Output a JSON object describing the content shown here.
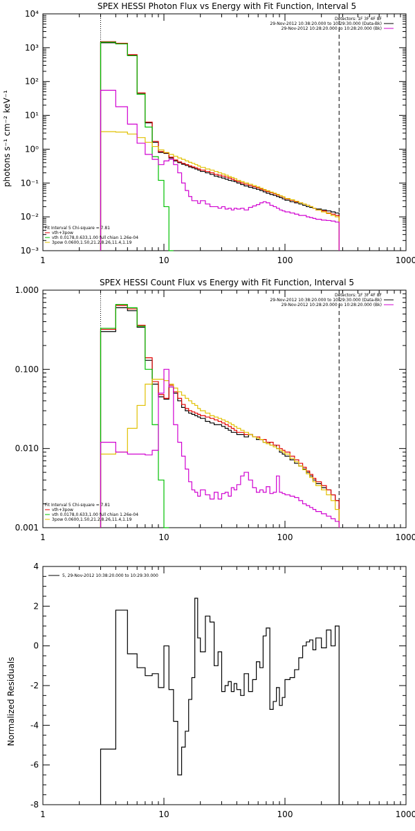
{
  "chart_data": [
    {
      "type": "line",
      "title": "SPEX HESSI Photon Flux vs Energy with Fit Function, Interval 5",
      "xlabel": "",
      "ylabel": "photons s⁻¹ cm⁻² keV⁻¹",
      "xscale": "log",
      "yscale": "log",
      "xlim": [
        1,
        1000
      ],
      "ylim": [
        0.001,
        10000
      ],
      "xticks": [
        "1",
        "10",
        "100",
        "1000"
      ],
      "yticks": [
        "10⁻³",
        "10⁻²",
        "10⁻¹",
        "10⁰",
        "10¹",
        "10²",
        "10³",
        "10⁴"
      ],
      "vlines": [
        3,
        280
      ],
      "legend_top_right": [
        {
          "text": "Detectors: 1F 3F 4F 8F",
          "color": "#000000"
        },
        {
          "text": "29-Nov-2012 10:38:20.000 to 10:29:30.000 (Data-Bk)",
          "color": "#000000"
        },
        {
          "text": "29-Nov-2012 10:28:20.000 to 10:28:20.000 (Bk)",
          "color": "#d000d0"
        }
      ],
      "legend_bottom_left": [
        {
          "text": "Fit Interval 5   Chi-square = 7.81",
          "color": "#000000"
        },
        {
          "text": "vth+3pow",
          "color": "#e00000"
        },
        {
          "text": "vth 0.0178,0.633,1.00  full chian 1.26e-04",
          "color": "#00c000"
        },
        {
          "text": "3pow 0.0600,1.50,21.2,8.26,11.4,1.19",
          "color": "#e0c000"
        }
      ],
      "edges": [
        3,
        4,
        5,
        6,
        7,
        8,
        9,
        10,
        11,
        12,
        13,
        14,
        15,
        16,
        17,
        18,
        19,
        20,
        22,
        24,
        26,
        28,
        30,
        32,
        34,
        36,
        38,
        40,
        43,
        46,
        50,
        54,
        58,
        62,
        66,
        70,
        75,
        80,
        85,
        90,
        95,
        100,
        110,
        120,
        130,
        140,
        150,
        160,
        170,
        180,
        200,
        220,
        240,
        260,
        280
      ],
      "series": [
        {
          "color": "#000000",
          "values": [
            1400,
            1300,
            600,
            45,
            6,
            1.6,
            0.8,
            0.75,
            0.55,
            0.45,
            0.4,
            0.36,
            0.33,
            0.3,
            0.28,
            0.26,
            0.24,
            0.22,
            0.2,
            0.18,
            0.16,
            0.15,
            0.14,
            0.13,
            0.12,
            0.115,
            0.11,
            0.1,
            0.09,
            0.082,
            0.075,
            0.07,
            0.065,
            0.06,
            0.055,
            0.05,
            0.046,
            0.043,
            0.04,
            0.037,
            0.034,
            0.031,
            0.028,
            0.026,
            0.024,
            0.022,
            0.02,
            0.019,
            0.018,
            0.017,
            0.016,
            0.015,
            0.014,
            0.013
          ]
        },
        {
          "color": "#e00000",
          "values": [
            1500,
            1350,
            620,
            46,
            6.3,
            1.7,
            0.85,
            0.78,
            0.58,
            0.48,
            0.42,
            0.38,
            0.35,
            0.32,
            0.3,
            0.28,
            0.26,
            0.24,
            0.22,
            0.2,
            0.18,
            0.17,
            0.16,
            0.15,
            0.14,
            0.13,
            0.12,
            0.11,
            0.1,
            0.092,
            0.085,
            0.078,
            0.072,
            0.066,
            0.061,
            0.056,
            0.052,
            0.048,
            0.044,
            0.041,
            0.038,
            0.034,
            0.031,
            0.028,
            0.026,
            0.024,
            0.022,
            0.02,
            0.018,
            0.016,
            0.015,
            0.013,
            0.012,
            0.011
          ]
        },
        {
          "color": "#00c000",
          "values": [
            1450,
            1300,
            580,
            42,
            4.5,
            0.6,
            0.12,
            0.02,
            0.001
          ]
        },
        {
          "color": "#e0c000",
          "values": [
            3.3,
            3.2,
            2.8,
            2.2,
            1.6,
            1.2,
            0.95,
            0.8,
            0.7,
            0.62,
            0.55,
            0.5,
            0.45,
            0.41,
            0.38,
            0.35,
            0.32,
            0.29,
            0.26,
            0.24,
            0.22,
            0.2,
            0.185,
            0.17,
            0.155,
            0.145,
            0.135,
            0.12,
            0.11,
            0.1,
            0.092,
            0.084,
            0.077,
            0.07,
            0.064,
            0.059,
            0.054,
            0.05,
            0.046,
            0.042,
            0.039,
            0.035,
            0.032,
            0.029,
            0.026,
            0.024,
            0.022,
            0.02,
            0.018,
            0.016,
            0.014,
            0.0125,
            0.011,
            0.01
          ]
        },
        {
          "color": "#d000d0",
          "values": [
            55,
            18,
            5.5,
            1.5,
            0.7,
            0.5,
            0.35,
            0.45,
            0.5,
            0.35,
            0.2,
            0.1,
            0.06,
            0.04,
            0.03,
            0.03,
            0.025,
            0.03,
            0.024,
            0.02,
            0.02,
            0.018,
            0.02,
            0.017,
            0.018,
            0.016,
            0.018,
            0.017,
            0.018,
            0.016,
            0.019,
            0.021,
            0.023,
            0.026,
            0.028,
            0.026,
            0.022,
            0.02,
            0.018,
            0.016,
            0.015,
            0.014,
            0.013,
            0.012,
            0.011,
            0.011,
            0.01,
            0.0095,
            0.009,
            0.0085,
            0.008,
            0.0078,
            0.0075,
            0.007
          ]
        }
      ]
    },
    {
      "type": "line",
      "title": "SPEX HESSI Count Flux vs Energy with Fit Function, Interval 5",
      "xlabel": "",
      "ylabel": "",
      "xscale": "log",
      "yscale": "log",
      "xlim": [
        1,
        1000
      ],
      "ylim": [
        0.001,
        1
      ],
      "xticks": [
        "1",
        "10",
        "100",
        "1000"
      ],
      "yticks": [
        "0.001",
        "0.010",
        "0.100",
        "1.000"
      ],
      "vlines": [
        3,
        280
      ],
      "legend_top_right": [
        {
          "text": "Detectors: 1F 3F 4F 8F",
          "color": "#000000"
        },
        {
          "text": "29-Nov-2012 10:38:20.000 to 10:29:30.000 (Data-Bk)",
          "color": "#000000"
        },
        {
          "text": "29-Nov-2012 10:28:20.000 to 10:28:20.000 (Bk)",
          "color": "#d000d0"
        }
      ],
      "legend_bottom_left": [
        {
          "text": "Fit Interval 5   Chi-square = 7.81",
          "color": "#000000"
        },
        {
          "text": "vth+3pow",
          "color": "#e00000"
        },
        {
          "text": "vth 0.0178,0.633,1.00  full chian 1.26e-04",
          "color": "#00c000"
        },
        {
          "text": "3pow 0.0600,1.50,21.2,8.26,11.4,1.19",
          "color": "#e0c000"
        }
      ],
      "edges": [
        3,
        4,
        5,
        6,
        7,
        8,
        9,
        10,
        11,
        12,
        13,
        14,
        15,
        16,
        17,
        18,
        19,
        20,
        22,
        24,
        26,
        28,
        30,
        32,
        34,
        36,
        38,
        40,
        43,
        46,
        50,
        54,
        58,
        62,
        66,
        70,
        75,
        80,
        85,
        90,
        95,
        100,
        110,
        120,
        130,
        140,
        150,
        160,
        170,
        180,
        200,
        220,
        240,
        260,
        280
      ],
      "series": [
        {
          "color": "#000000",
          "values": [
            0.3,
            0.6,
            0.55,
            0.34,
            0.13,
            0.065,
            0.045,
            0.042,
            0.06,
            0.05,
            0.04,
            0.033,
            0.03,
            0.028,
            0.027,
            0.026,
            0.025,
            0.024,
            0.022,
            0.021,
            0.02,
            0.02,
            0.019,
            0.018,
            0.017,
            0.016,
            0.016,
            0.015,
            0.015,
            0.014,
            0.015,
            0.014,
            0.013,
            0.013,
            0.012,
            0.012,
            0.011,
            0.011,
            0.01,
            0.009,
            0.0085,
            0.008,
            0.0072,
            0.0065,
            0.006,
            0.0055,
            0.005,
            0.0045,
            0.004,
            0.0036,
            0.0032,
            0.003,
            0.0026,
            0.0022
          ]
        },
        {
          "color": "#e00000",
          "values": [
            0.32,
            0.64,
            0.58,
            0.36,
            0.14,
            0.07,
            0.048,
            0.043,
            0.063,
            0.052,
            0.043,
            0.036,
            0.032,
            0.03,
            0.029,
            0.028,
            0.027,
            0.026,
            0.025,
            0.024,
            0.023,
            0.022,
            0.021,
            0.02,
            0.019,
            0.018,
            0.017,
            0.016,
            0.016,
            0.015,
            0.015,
            0.014,
            0.014,
            0.013,
            0.013,
            0.012,
            0.012,
            0.011,
            0.011,
            0.01,
            0.0095,
            0.009,
            0.008,
            0.0072,
            0.0065,
            0.0058,
            0.0052,
            0.0047,
            0.0042,
            0.0038,
            0.0034,
            0.003,
            0.0026,
            0.0022
          ]
        },
        {
          "color": "#00c000",
          "values": [
            0.33,
            0.66,
            0.6,
            0.35,
            0.1,
            0.02,
            0.004,
            0.001
          ]
        },
        {
          "color": "#e0c000",
          "values": [
            0.0085,
            0.009,
            0.018,
            0.035,
            0.065,
            0.075,
            0.075,
            0.072,
            0.065,
            0.058,
            0.052,
            0.047,
            0.043,
            0.04,
            0.037,
            0.035,
            0.032,
            0.03,
            0.028,
            0.026,
            0.025,
            0.024,
            0.023,
            0.022,
            0.021,
            0.02,
            0.019,
            0.018,
            0.017,
            0.016,
            0.015,
            0.014,
            0.0135,
            0.013,
            0.012,
            0.0115,
            0.011,
            0.0105,
            0.01,
            0.0095,
            0.009,
            0.0085,
            0.0075,
            0.0068,
            0.006,
            0.0054,
            0.0048,
            0.0043,
            0.0038,
            0.0034,
            0.003,
            0.0026,
            0.0022,
            0.0017
          ]
        },
        {
          "color": "#d000d0",
          "values": [
            0.012,
            0.009,
            0.0085,
            0.0085,
            0.0083,
            0.0095,
            0.05,
            0.1,
            0.06,
            0.02,
            0.012,
            0.008,
            0.0055,
            0.0038,
            0.003,
            0.0028,
            0.0025,
            0.003,
            0.0026,
            0.0023,
            0.0028,
            0.0023,
            0.0027,
            0.0028,
            0.0025,
            0.0032,
            0.003,
            0.0035,
            0.0045,
            0.005,
            0.004,
            0.0032,
            0.0028,
            0.003,
            0.0028,
            0.0033,
            0.0027,
            0.0028,
            0.0045,
            0.0028,
            0.0027,
            0.0026,
            0.0025,
            0.0024,
            0.0022,
            0.002,
            0.0019,
            0.0018,
            0.0017,
            0.0016,
            0.0015,
            0.0014,
            0.0013,
            0.0012
          ]
        }
      ]
    },
    {
      "type": "line",
      "title": "",
      "xlabel": "",
      "ylabel": "Normalized Residuals",
      "xscale": "log",
      "yscale": "linear",
      "xlim": [
        1,
        1000
      ],
      "ylim": [
        -8,
        4
      ],
      "xticks": [
        "1",
        "10",
        "100",
        "1000"
      ],
      "yticks": [
        "-8",
        "-6",
        "-4",
        "-2",
        "0",
        "2",
        "4"
      ],
      "legend": "5, 29-Nov-2012 10:38:20.000 to 10:29:30.000",
      "edges": [
        3,
        4,
        5,
        6,
        7,
        8,
        9,
        10,
        11,
        12,
        13,
        14,
        15,
        16,
        17,
        18,
        19,
        20,
        22,
        24,
        26,
        28,
        30,
        32,
        34,
        36,
        38,
        40,
        43,
        46,
        50,
        54,
        58,
        62,
        66,
        70,
        75,
        80,
        85,
        90,
        95,
        100,
        110,
        120,
        130,
        140,
        150,
        160,
        170,
        180,
        200,
        220,
        240,
        260,
        280
      ],
      "series": [
        {
          "color": "#000000",
          "values": [
            -5.2,
            1.8,
            -0.4,
            -1.1,
            -1.5,
            -1.4,
            -2.1,
            0.0,
            -2.2,
            -3.8,
            -6.5,
            -5.1,
            -4.3,
            -2.7,
            -1.6,
            2.4,
            0.4,
            -0.3,
            1.5,
            1.2,
            -1.0,
            -0.3,
            -2.3,
            -2.0,
            -1.8,
            -2.3,
            -1.9,
            -2.2,
            -2.5,
            -1.4,
            -2.3,
            -1.7,
            -0.8,
            -1.1,
            0.5,
            0.9,
            -3.2,
            -2.8,
            -2.1,
            -3.0,
            -2.6,
            -1.7,
            -1.6,
            -1.2,
            -0.6,
            0.0,
            0.2,
            0.3,
            -0.2,
            0.4,
            -0.1,
            0.8,
            0.0,
            1.0
          ]
        }
      ]
    }
  ]
}
